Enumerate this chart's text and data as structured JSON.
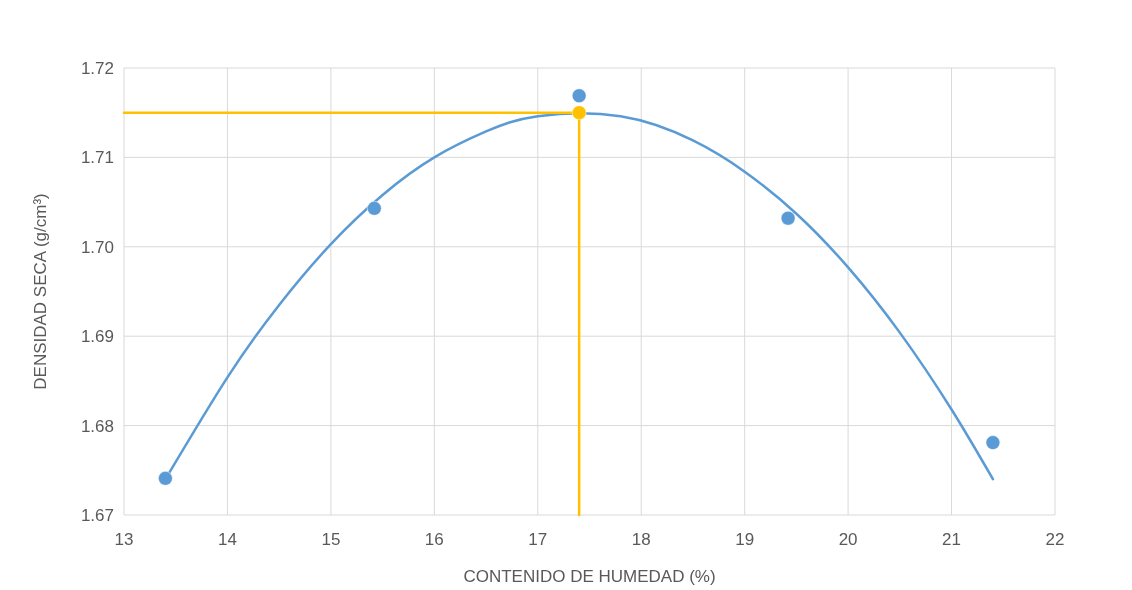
{
  "chart_data": {
    "type": "scatter",
    "xlabel": "CONTENIDO DE HUMEDAD (%)",
    "ylabel": "DENSIDAD SECA (g/cm³)",
    "xlim": [
      13,
      22
    ],
    "xticks": [
      13,
      14,
      15,
      16,
      17,
      18,
      19,
      20,
      21,
      22
    ],
    "ylim": [
      1.67,
      1.72
    ],
    "yticks": [
      {
        "value": 1.67,
        "label": "1.67"
      },
      {
        "value": 1.68,
        "label": "1.68"
      },
      {
        "value": 1.69,
        "label": "1.69"
      },
      {
        "value": 1.7,
        "label": "1.70"
      },
      {
        "value": 1.71,
        "label": "1.71"
      },
      {
        "value": 1.72,
        "label": "1.72"
      }
    ],
    "grid": true,
    "series": [
      {
        "type": "line",
        "marker": "none",
        "color": "#5b9bd5",
        "x": [
          13.4,
          14,
          14.5,
          15,
          15.5,
          16,
          16.5,
          17,
          17.8,
          18.5,
          19,
          19.5,
          20,
          20.5,
          21,
          21.4
        ],
        "values": [
          1.674,
          1.6854,
          1.6935,
          1.7003,
          1.7058,
          1.71,
          1.7129,
          1.7146,
          1.7146,
          1.7119,
          1.7084,
          1.7037,
          1.6977,
          1.6904,
          1.6818,
          1.674
        ]
      },
      {
        "type": "line",
        "marker": "none",
        "color": "#ffc000",
        "x": [
          13,
          17.4,
          17.4
        ],
        "values": [
          1.715,
          1.715,
          1.67
        ]
      },
      {
        "marker": "circle",
        "color": "#5b9bd5",
        "x": [
          13.4,
          15.42,
          17.4,
          19.42,
          21.4
        ],
        "values": [
          1.6741,
          1.7043,
          1.7169,
          1.7032,
          1.6781
        ]
      },
      {
        "marker": "circle",
        "color": "#ffc000",
        "x": [
          17.4
        ],
        "values": [
          1.715
        ]
      }
    ]
  }
}
